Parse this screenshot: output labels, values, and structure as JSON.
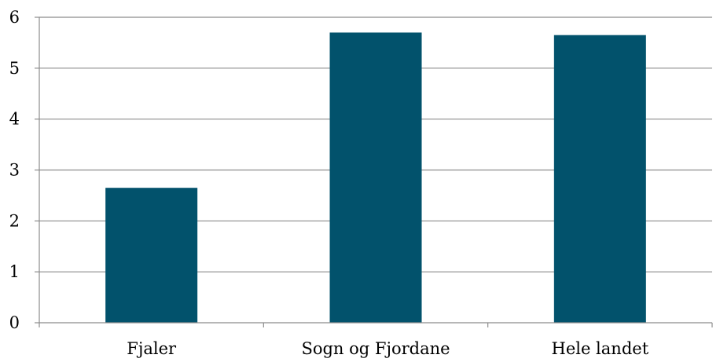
{
  "chart_data": {
    "type": "bar",
    "title": "",
    "xlabel": "",
    "ylabel": "",
    "categories": [
      "Fjaler",
      "Sogn og Fjordane",
      "Hele landet"
    ],
    "values": [
      2.65,
      5.7,
      5.65
    ],
    "ylim": [
      0,
      6
    ],
    "yticks": [
      "0",
      "1",
      "2",
      "3",
      "4",
      "5",
      "6"
    ],
    "grid": true,
    "legend": "none",
    "bar_color": "#02526C",
    "grid_color": "#8C8C8C",
    "axis_color": "#8C8C8C"
  }
}
